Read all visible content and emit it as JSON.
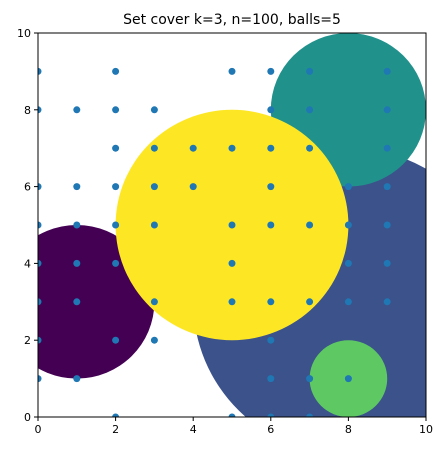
{
  "chart_data": {
    "type": "scatter",
    "title": "Set cover k=3, n=100, balls=5",
    "xlabel": "",
    "ylabel": "",
    "xlim": [
      0,
      10
    ],
    "ylim": [
      0,
      10
    ],
    "xticks": [
      "0",
      "2",
      "4",
      "6",
      "8",
      "10"
    ],
    "yticks": [
      "0",
      "2",
      "4",
      "6",
      "8",
      "10"
    ],
    "grid": false,
    "balls": [
      {
        "cx": 1,
        "cy": 3,
        "r": 2,
        "color": "#440154"
      },
      {
        "cx": 8,
        "cy": 3,
        "r": 4,
        "color": "#3b528b"
      },
      {
        "cx": 8,
        "cy": 8,
        "r": 2,
        "color": "#21918c"
      },
      {
        "cx": 8,
        "cy": 1,
        "r": 1,
        "color": "#5ec962"
      },
      {
        "cx": 5,
        "cy": 5,
        "r": 3,
        "color": "#fde725"
      }
    ],
    "point_color": "#1f77b4",
    "points": [
      [
        0,
        9
      ],
      [
        0,
        8
      ],
      [
        0,
        6
      ],
      [
        0,
        5
      ],
      [
        0,
        4
      ],
      [
        0,
        3
      ],
      [
        0,
        2
      ],
      [
        0,
        1
      ],
      [
        1,
        8
      ],
      [
        1,
        6
      ],
      [
        1,
        5
      ],
      [
        1,
        4
      ],
      [
        1,
        3
      ],
      [
        1,
        1
      ],
      [
        2,
        9
      ],
      [
        2,
        8
      ],
      [
        2,
        7
      ],
      [
        2,
        6
      ],
      [
        2,
        5
      ],
      [
        2,
        4
      ],
      [
        2,
        2
      ],
      [
        2,
        0
      ],
      [
        3,
        8
      ],
      [
        3,
        7
      ],
      [
        3,
        6
      ],
      [
        3,
        5
      ],
      [
        3,
        3
      ],
      [
        3,
        2
      ],
      [
        4,
        7
      ],
      [
        4,
        6
      ],
      [
        5,
        9
      ],
      [
        5,
        7
      ],
      [
        5,
        5
      ],
      [
        5,
        4
      ],
      [
        5,
        3
      ],
      [
        5,
        0
      ],
      [
        6,
        9
      ],
      [
        6,
        8
      ],
      [
        6,
        7
      ],
      [
        6,
        6
      ],
      [
        6,
        5
      ],
      [
        6,
        3
      ],
      [
        6,
        2
      ],
      [
        6,
        1
      ],
      [
        6,
        0
      ],
      [
        7,
        9
      ],
      [
        7,
        8
      ],
      [
        7,
        7
      ],
      [
        7,
        5
      ],
      [
        7,
        3
      ],
      [
        7,
        1
      ],
      [
        7,
        0
      ],
      [
        8,
        6
      ],
      [
        8,
        5
      ],
      [
        8,
        4
      ],
      [
        8,
        3
      ],
      [
        8,
        1
      ],
      [
        9,
        9
      ],
      [
        9,
        8
      ],
      [
        9,
        7
      ],
      [
        9,
        6
      ],
      [
        9,
        5
      ],
      [
        9,
        4
      ],
      [
        9,
        3
      ]
    ]
  }
}
